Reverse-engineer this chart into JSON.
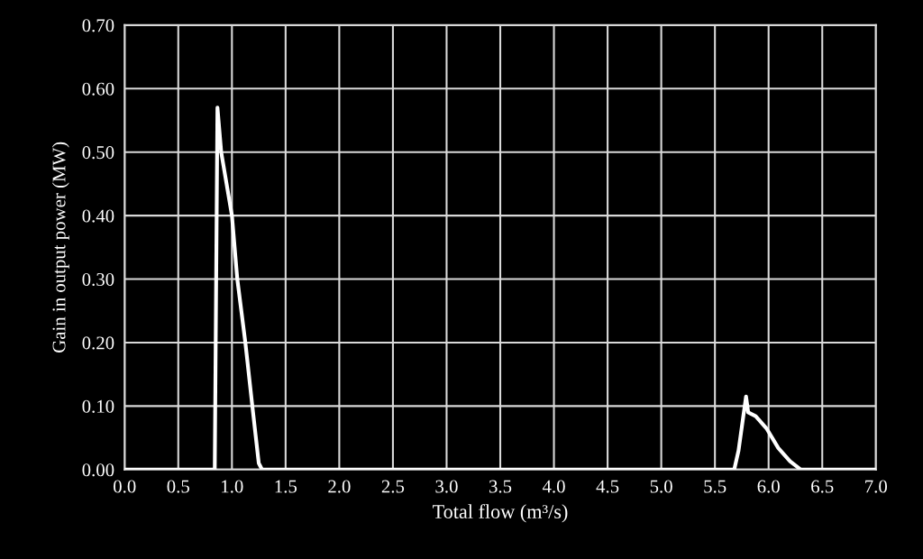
{
  "chart_data": {
    "type": "line",
    "xlabel": "Total flow (m³/s)",
    "ylabel": "Gain in output power (MW)",
    "x": [
      0,
      0.84,
      0.865,
      0.9,
      1.0,
      1.05,
      1.125,
      1.19,
      1.25,
      1.28,
      5.68,
      5.72,
      5.79,
      5.81,
      5.88,
      5.98,
      6.09,
      6.2,
      6.3,
      7.0
    ],
    "series": [
      {
        "color": "#ffffff",
        "values": [
          0,
          0,
          0.57,
          0.5,
          0.4,
          0.3,
          0.2,
          0.1,
          0.01,
          0,
          0,
          0.03,
          0.115,
          0.09,
          0.084,
          0.065,
          0.034,
          0.013,
          0,
          0
        ]
      }
    ],
    "xlim": [
      0,
      7
    ],
    "ylim": [
      0,
      0.7
    ],
    "xticks": [
      {
        "value": 0,
        "label": "0.0"
      },
      {
        "value": 0.5,
        "label": "0.5"
      },
      {
        "value": 1,
        "label": "1.0"
      },
      {
        "value": 1.5,
        "label": "1.5"
      },
      {
        "value": 2,
        "label": "2.0"
      },
      {
        "value": 2.5,
        "label": "2.5"
      },
      {
        "value": 3,
        "label": "3.0"
      },
      {
        "value": 3.5,
        "label": "3.5"
      },
      {
        "value": 4,
        "label": "4.0"
      },
      {
        "value": 4.5,
        "label": "4.5"
      },
      {
        "value": 5,
        "label": "5.0"
      },
      {
        "value": 5.5,
        "label": "5.5"
      },
      {
        "value": 6,
        "label": "6.0"
      },
      {
        "value": 6.5,
        "label": "6.5"
      },
      {
        "value": 7,
        "label": "7.0"
      }
    ],
    "yticks": [
      {
        "value": 0,
        "label": "0.00"
      },
      {
        "value": 0.1,
        "label": "0.10"
      },
      {
        "value": 0.2,
        "label": "0.20"
      },
      {
        "value": 0.3,
        "label": "0.30"
      },
      {
        "value": 0.4,
        "label": "0.40"
      },
      {
        "value": 0.5,
        "label": "0.50"
      },
      {
        "value": 0.6,
        "label": "0.60"
      },
      {
        "value": 0.7,
        "label": "0.70"
      }
    ],
    "grid": true,
    "legend": false,
    "marker": "none",
    "line_style": "solid"
  }
}
